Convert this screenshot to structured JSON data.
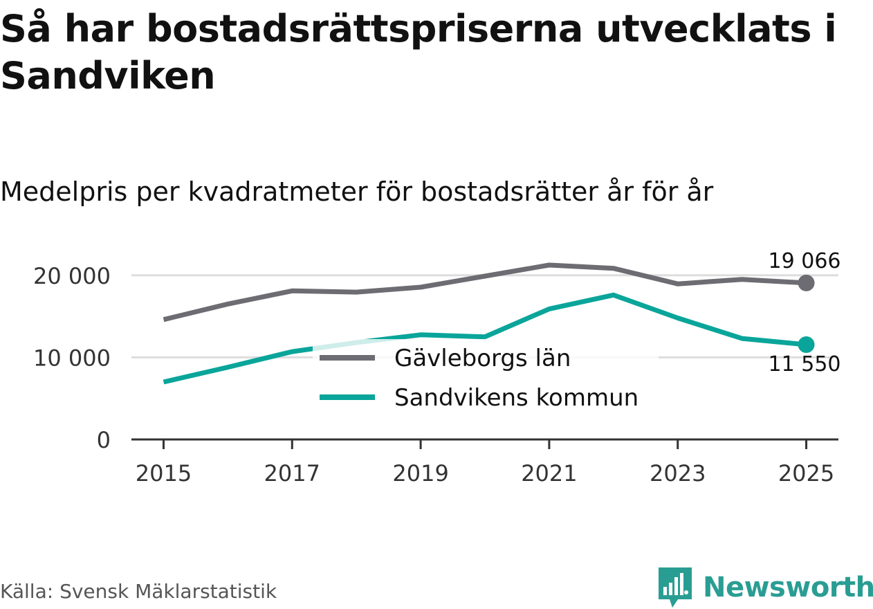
{
  "header": {
    "title": "Så har bostadsrättspriserna utvecklats i Sandviken",
    "subtitle": "Medelpris per kvadratmeter för bostadsrätter år för år"
  },
  "footer": {
    "source": "Källa: Svensk Mäklarstatistik",
    "brand": "Newsworthy"
  },
  "colors": {
    "gavleborg": "#6d6c72",
    "sandviken": "#0aa59a",
    "grid": "#dddddd",
    "axis": "#333333",
    "brand": "#2a9d93"
  },
  "chart_data": {
    "type": "line",
    "title": "Så har bostadsrättspriserna utvecklats i Sandviken",
    "subtitle": "Medelpris per kvadratmeter för bostadsrätter år för år",
    "xlabel": "",
    "ylabel": "",
    "x": [
      2015,
      2016,
      2017,
      2018,
      2019,
      2020,
      2021,
      2022,
      2023,
      2024,
      2025
    ],
    "xticks": [
      "2015",
      "2017",
      "2019",
      "2021",
      "2023",
      "2025"
    ],
    "yticks": [
      {
        "value": 0,
        "label": "0"
      },
      {
        "value": 10000,
        "label": "10 000"
      },
      {
        "value": 20000,
        "label": "20 000"
      }
    ],
    "ylim": [
      0,
      21500
    ],
    "grid": true,
    "legend_position": "center",
    "series": [
      {
        "name": "Gävleborgs län",
        "color": "#6d6c72",
        "values": [
          14600,
          16500,
          18100,
          17950,
          18550,
          19900,
          21250,
          20850,
          18950,
          19500,
          19066
        ],
        "end_label": "19 066"
      },
      {
        "name": "Sandvikens kommun",
        "color": "#0aa59a",
        "values": [
          7000,
          8800,
          10700,
          11800,
          12750,
          12500,
          15900,
          17600,
          14800,
          12300,
          11550
        ],
        "end_label": "11 550"
      }
    ]
  }
}
